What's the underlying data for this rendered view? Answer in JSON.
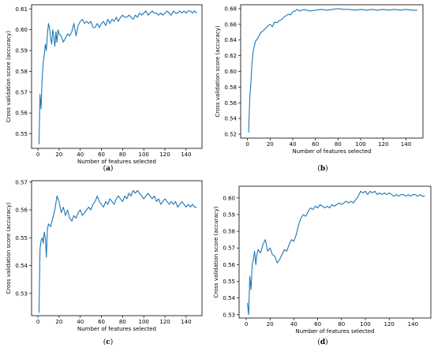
{
  "chart_data": [
    {
      "id": "a",
      "type": "line",
      "caption_prefix": "(",
      "caption_letter": "a",
      "caption_suffix": ")",
      "xlabel": "Number of features selected",
      "ylabel": "Cross validation score (accuracy)",
      "xlim": [
        -6,
        155
      ],
      "ylim": [
        0.543,
        0.612
      ],
      "xticks": [
        0,
        20,
        40,
        60,
        80,
        100,
        120,
        140
      ],
      "yticks": [
        0.55,
        0.56,
        0.57,
        0.58,
        0.59,
        0.6,
        0.61
      ],
      "ytick_decimals": 2,
      "color": "#1f77b4",
      "series": [
        {
          "x": [
            1,
            2,
            3,
            4,
            5,
            6,
            7,
            8,
            9,
            10,
            11,
            12,
            13,
            14,
            15,
            16,
            17,
            18,
            19,
            20,
            22,
            24,
            26,
            28,
            30,
            32,
            34,
            36,
            38,
            40,
            42,
            44,
            46,
            48,
            50,
            52,
            54,
            56,
            58,
            60,
            62,
            64,
            66,
            68,
            70,
            72,
            74,
            76,
            78,
            80,
            82,
            84,
            86,
            88,
            90,
            92,
            94,
            96,
            98,
            100,
            102,
            104,
            106,
            108,
            110,
            112,
            114,
            116,
            118,
            120,
            122,
            124,
            126,
            128,
            130,
            132,
            134,
            136,
            138,
            140,
            142,
            144,
            146,
            148,
            150
          ],
          "y": [
            0.545,
            0.569,
            0.562,
            0.577,
            0.584,
            0.588,
            0.593,
            0.59,
            0.598,
            0.603,
            0.601,
            0.596,
            0.593,
            0.6,
            0.597,
            0.592,
            0.599,
            0.594,
            0.6,
            0.598,
            0.597,
            0.594,
            0.596,
            0.598,
            0.597,
            0.599,
            0.603,
            0.597,
            0.602,
            0.604,
            0.605,
            0.603,
            0.604,
            0.603,
            0.604,
            0.601,
            0.601,
            0.603,
            0.601,
            0.603,
            0.604,
            0.602,
            0.605,
            0.603,
            0.605,
            0.604,
            0.606,
            0.604,
            0.606,
            0.607,
            0.606,
            0.606,
            0.607,
            0.606,
            0.605,
            0.607,
            0.606,
            0.608,
            0.607,
            0.608,
            0.609,
            0.607,
            0.608,
            0.609,
            0.608,
            0.608,
            0.607,
            0.608,
            0.607,
            0.608,
            0.609,
            0.608,
            0.607,
            0.609,
            0.608,
            0.608,
            0.609,
            0.608,
            0.609,
            0.608,
            0.609,
            0.609,
            0.608,
            0.609,
            0.608
          ]
        }
      ]
    },
    {
      "id": "b",
      "type": "line",
      "caption_prefix": "(",
      "caption_letter": "b",
      "caption_suffix": ")",
      "xlabel": "Number of features selected",
      "ylabel": "Cross validation score (accuracy)",
      "xlim": [
        -6,
        155
      ],
      "ylim": [
        0.515,
        0.685
      ],
      "xticks": [
        0,
        20,
        40,
        60,
        80,
        100,
        120,
        140
      ],
      "yticks": [
        0.52,
        0.54,
        0.56,
        0.58,
        0.6,
        0.62,
        0.64,
        0.66,
        0.68
      ],
      "ytick_decimals": 2,
      "color": "#1f77b4",
      "series": [
        {
          "x": [
            1,
            2,
            3,
            4,
            5,
            6,
            7,
            8,
            9,
            10,
            12,
            14,
            16,
            18,
            20,
            22,
            24,
            26,
            28,
            30,
            32,
            34,
            36,
            38,
            40,
            42,
            44,
            46,
            48,
            50,
            55,
            60,
            65,
            70,
            75,
            80,
            85,
            90,
            95,
            100,
            105,
            110,
            115,
            120,
            125,
            130,
            135,
            140,
            145,
            150
          ],
          "y": [
            0.522,
            0.565,
            0.585,
            0.61,
            0.625,
            0.632,
            0.638,
            0.64,
            0.642,
            0.645,
            0.65,
            0.652,
            0.655,
            0.658,
            0.66,
            0.657,
            0.663,
            0.662,
            0.665,
            0.666,
            0.669,
            0.671,
            0.673,
            0.672,
            0.676,
            0.677,
            0.679,
            0.677,
            0.678,
            0.679,
            0.677,
            0.678,
            0.679,
            0.678,
            0.679,
            0.68,
            0.679,
            0.679,
            0.678,
            0.679,
            0.678,
            0.679,
            0.678,
            0.679,
            0.678,
            0.679,
            0.678,
            0.679,
            0.678,
            0.678
          ]
        }
      ]
    },
    {
      "id": "c",
      "type": "line",
      "caption_prefix": "(",
      "caption_letter": "c",
      "caption_suffix": ")",
      "xlabel": "Number of features selected",
      "ylabel": "Cross validation score (accuracy)",
      "xlim": [
        -6,
        155
      ],
      "ylim": [
        0.522,
        0.5705
      ],
      "xticks": [
        0,
        20,
        40,
        60,
        80,
        100,
        120,
        140
      ],
      "yticks": [
        0.53,
        0.54,
        0.55,
        0.56,
        0.57
      ],
      "ytick_decimals": 2,
      "color": "#1f77b4",
      "series": [
        {
          "x": [
            1,
            2,
            3,
            4,
            5,
            6,
            7,
            8,
            9,
            10,
            12,
            14,
            16,
            18,
            20,
            22,
            24,
            26,
            28,
            30,
            32,
            34,
            36,
            38,
            40,
            42,
            44,
            46,
            48,
            50,
            52,
            54,
            56,
            58,
            60,
            62,
            64,
            66,
            68,
            70,
            72,
            74,
            76,
            78,
            80,
            82,
            84,
            86,
            88,
            90,
            92,
            94,
            96,
            98,
            100,
            102,
            104,
            106,
            108,
            110,
            112,
            114,
            116,
            118,
            120,
            122,
            124,
            126,
            128,
            130,
            132,
            134,
            136,
            138,
            140,
            142,
            144,
            146,
            148,
            150
          ],
          "y": [
            0.523,
            0.546,
            0.549,
            0.55,
            0.548,
            0.552,
            0.55,
            0.543,
            0.553,
            0.555,
            0.554,
            0.557,
            0.56,
            0.565,
            0.563,
            0.559,
            0.561,
            0.558,
            0.56,
            0.557,
            0.556,
            0.558,
            0.557,
            0.559,
            0.56,
            0.558,
            0.559,
            0.56,
            0.561,
            0.56,
            0.562,
            0.563,
            0.565,
            0.563,
            0.562,
            0.561,
            0.563,
            0.562,
            0.564,
            0.563,
            0.562,
            0.564,
            0.565,
            0.564,
            0.563,
            0.565,
            0.564,
            0.566,
            0.565,
            0.567,
            0.566,
            0.567,
            0.566,
            0.565,
            0.564,
            0.565,
            0.566,
            0.565,
            0.564,
            0.565,
            0.563,
            0.564,
            0.562,
            0.563,
            0.564,
            0.563,
            0.562,
            0.563,
            0.562,
            0.563,
            0.561,
            0.562,
            0.563,
            0.562,
            0.561,
            0.562,
            0.561,
            0.562,
            0.561,
            0.561
          ]
        }
      ]
    },
    {
      "id": "d",
      "type": "line",
      "caption_prefix": "(",
      "caption_letter": "d",
      "caption_suffix": ")",
      "xlabel": "Number of features selected",
      "ylabel": "Cross validation score (accuracy)",
      "xlim": [
        -6,
        155
      ],
      "ylim": [
        0.528,
        0.607
      ],
      "xticks": [
        0,
        20,
        40,
        60,
        80,
        100,
        120,
        140
      ],
      "yticks": [
        0.53,
        0.54,
        0.55,
        0.56,
        0.57,
        0.58,
        0.59,
        0.6
      ],
      "ytick_decimals": 2,
      "color": "#1f77b4",
      "series": [
        {
          "x": [
            1,
            2,
            3,
            4,
            5,
            6,
            7,
            8,
            9,
            10,
            12,
            14,
            16,
            18,
            20,
            22,
            24,
            26,
            28,
            30,
            32,
            34,
            36,
            38,
            40,
            42,
            44,
            46,
            48,
            50,
            52,
            54,
            56,
            58,
            60,
            62,
            64,
            66,
            68,
            70,
            72,
            74,
            76,
            78,
            80,
            82,
            84,
            86,
            88,
            90,
            92,
            94,
            96,
            98,
            100,
            102,
            104,
            106,
            108,
            110,
            112,
            114,
            116,
            118,
            120,
            122,
            124,
            126,
            128,
            130,
            132,
            134,
            136,
            138,
            140,
            142,
            144,
            146,
            148,
            150
          ],
          "y": [
            0.537,
            0.53,
            0.553,
            0.545,
            0.56,
            0.563,
            0.568,
            0.56,
            0.566,
            0.569,
            0.567,
            0.572,
            0.575,
            0.568,
            0.57,
            0.566,
            0.565,
            0.561,
            0.563,
            0.566,
            0.569,
            0.568,
            0.572,
            0.575,
            0.574,
            0.578,
            0.584,
            0.588,
            0.59,
            0.589,
            0.592,
            0.594,
            0.593,
            0.595,
            0.594,
            0.596,
            0.595,
            0.594,
            0.595,
            0.594,
            0.596,
            0.595,
            0.596,
            0.597,
            0.596,
            0.597,
            0.598,
            0.597,
            0.598,
            0.597,
            0.599,
            0.601,
            0.604,
            0.603,
            0.604,
            0.602,
            0.604,
            0.603,
            0.604,
            0.602,
            0.603,
            0.602,
            0.603,
            0.602,
            0.603,
            0.602,
            0.601,
            0.602,
            0.601,
            0.602,
            0.602,
            0.601,
            0.602,
            0.601,
            0.602,
            0.602,
            0.601,
            0.602,
            0.601,
            0.601
          ]
        }
      ]
    }
  ]
}
